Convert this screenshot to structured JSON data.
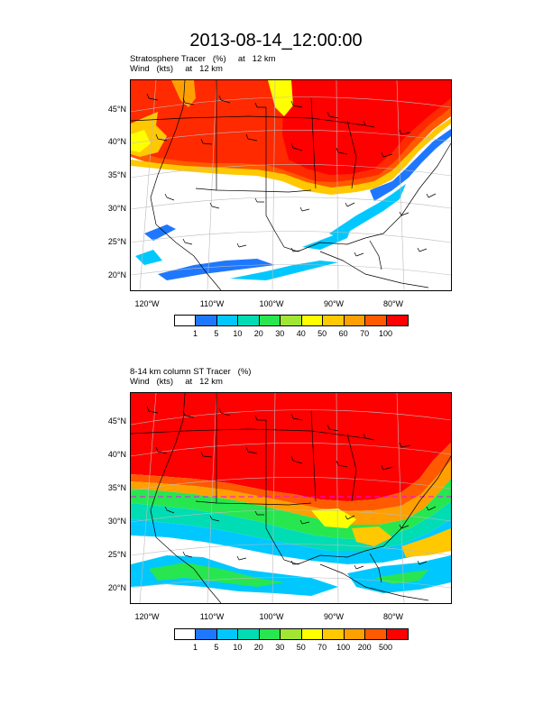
{
  "title": "2013-08-14_12:00:00",
  "panel1": {
    "title_line1": "Stratosphere Tracer   (%)     at   12 km",
    "title_line2": "Wind   (kts)     at   12 km",
    "lat_labels": [
      "45°N",
      "40°N",
      "35°N",
      "30°N",
      "25°N",
      "20°N"
    ],
    "lon_labels": [
      "120°W",
      "110°W",
      "100°W",
      "90°W",
      "80°W"
    ],
    "colorbar_labels": [
      "1",
      "5",
      "10",
      "20",
      "30",
      "40",
      "50",
      "60",
      "70",
      "100"
    ]
  },
  "panel2": {
    "title_line1": "8-14 km column ST Tracer   (%)",
    "title_line2": "Wind   (kts)     at   12 km",
    "lat_labels": [
      "45°N",
      "40°N",
      "35°N",
      "30°N",
      "25°N",
      "20°N"
    ],
    "lon_labels": [
      "120°W",
      "110°W",
      "100°W",
      "90°W",
      "80°W"
    ],
    "colorbar_labels": [
      "1",
      "5",
      "10",
      "20",
      "30",
      "50",
      "70",
      "100",
      "200",
      "500"
    ]
  },
  "colors": {
    "levels": [
      "#ffffff",
      "#1e78ff",
      "#00c8ff",
      "#00dcb4",
      "#28e650",
      "#a0e632",
      "#ffff00",
      "#ffc800",
      "#ffa000",
      "#ff5a00",
      "#ff0000"
    ]
  }
}
